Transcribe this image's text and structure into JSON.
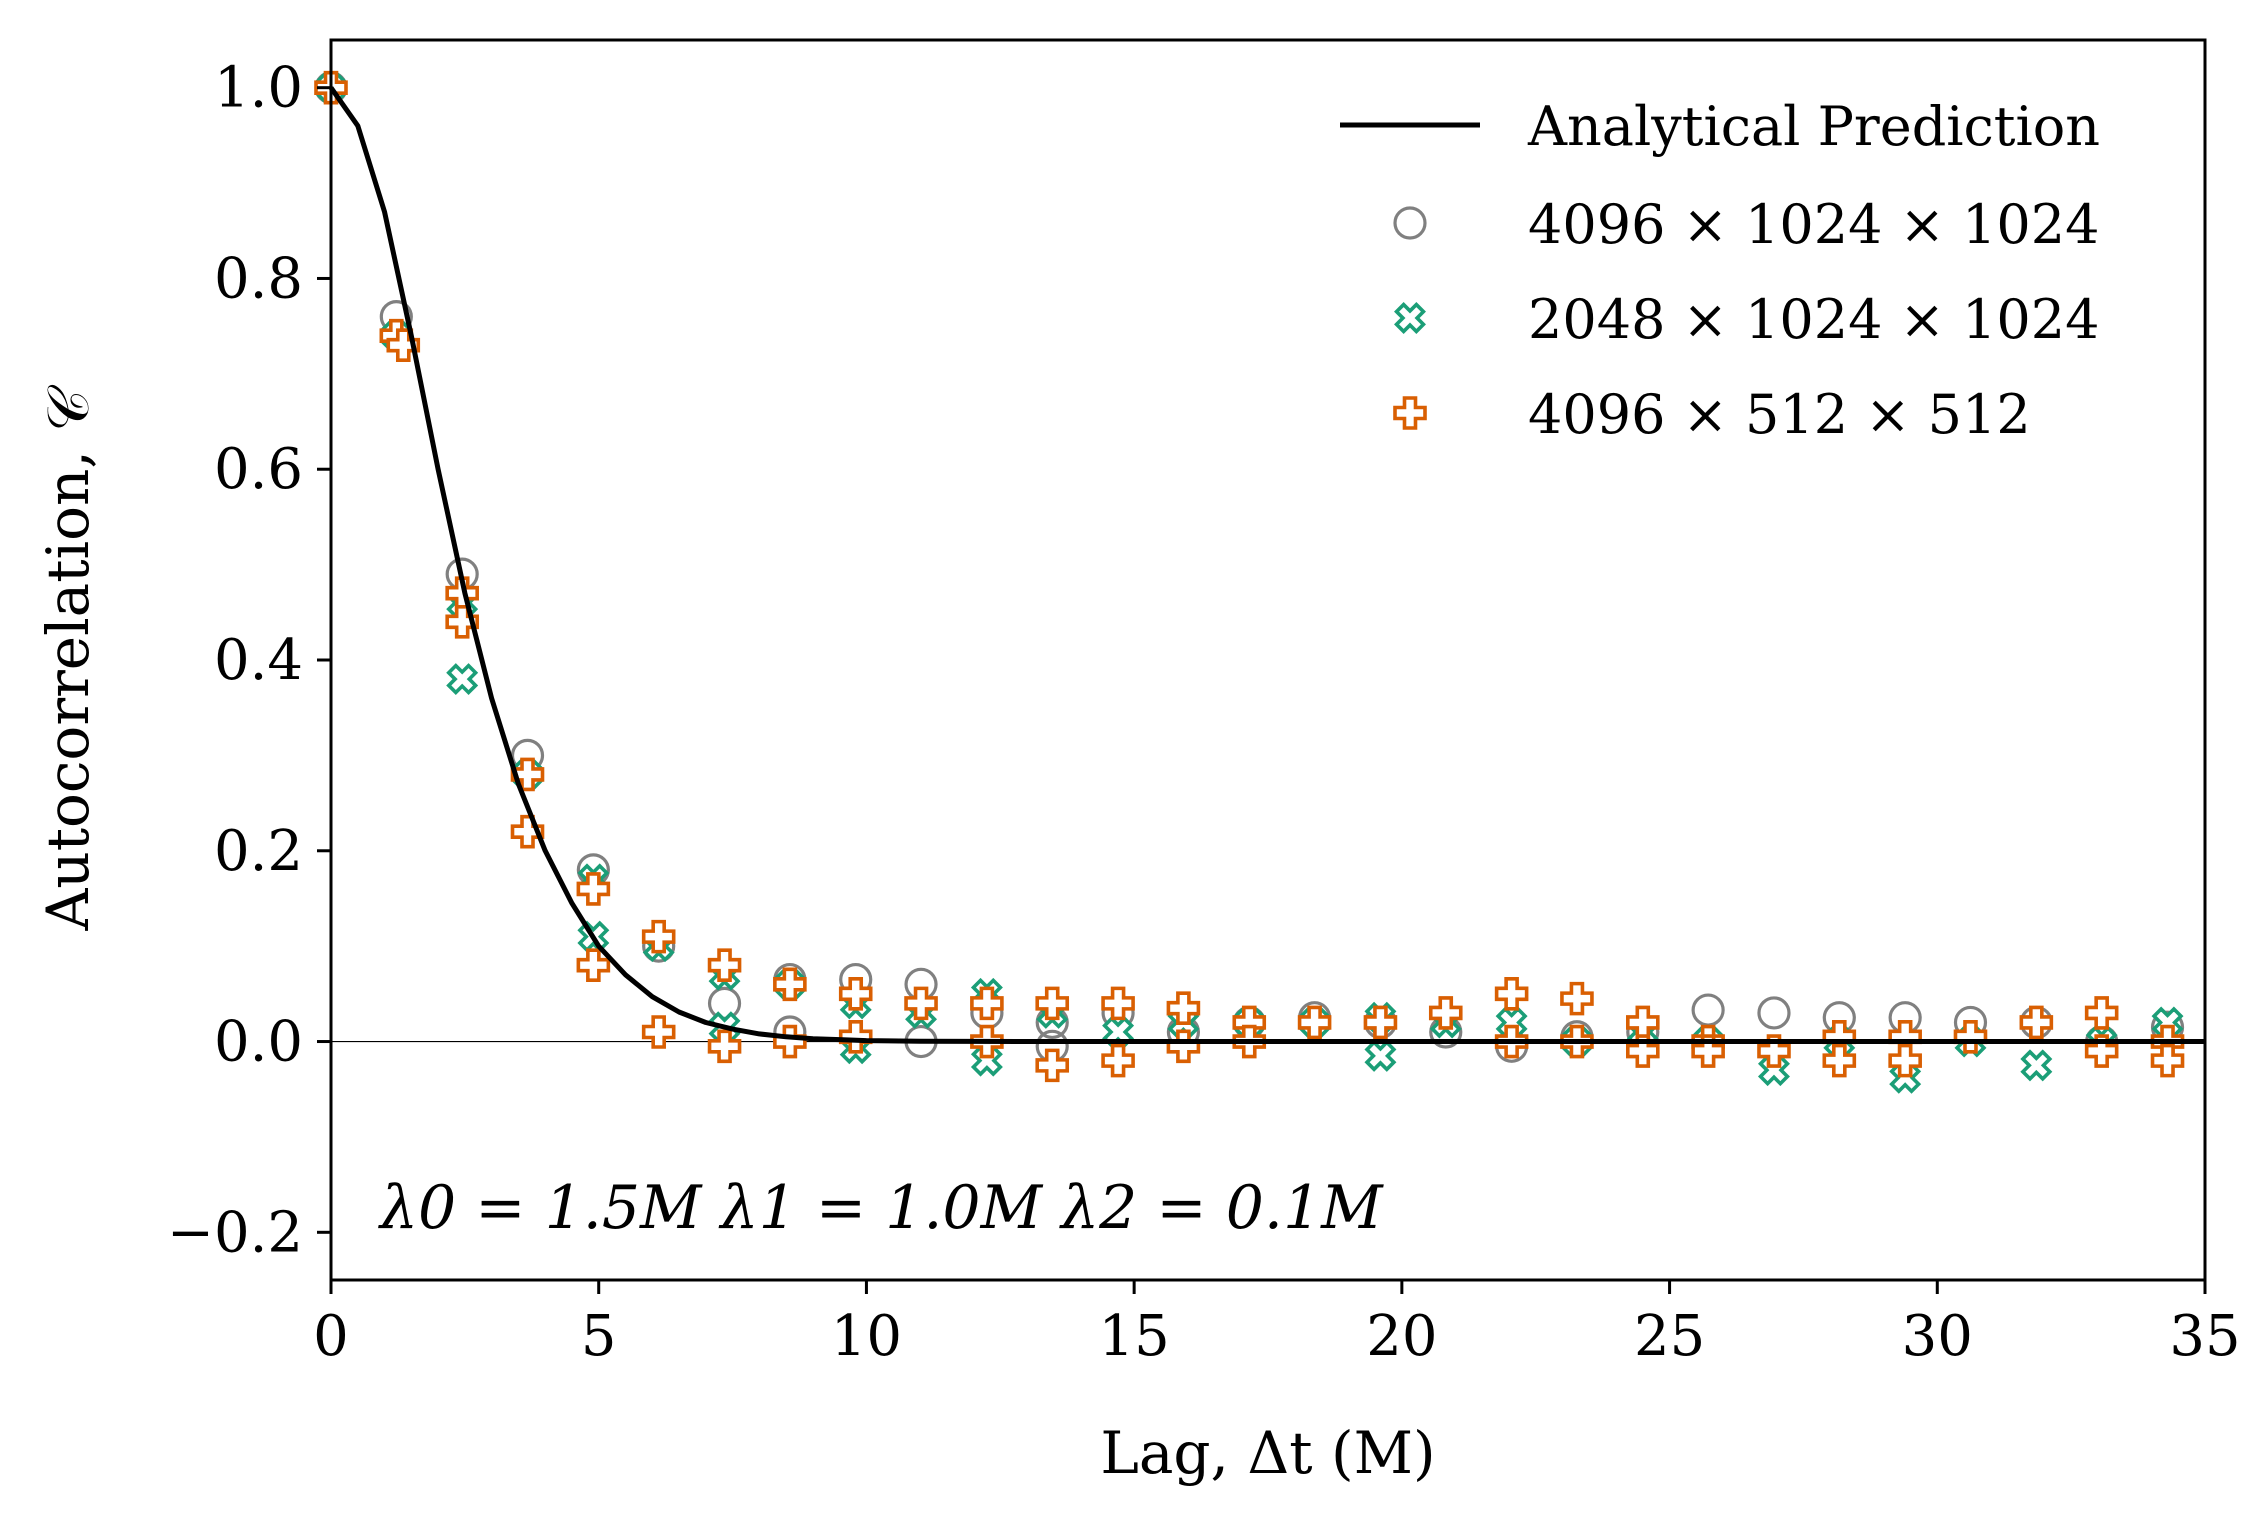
{
  "chart_data": {
    "type": "scatter",
    "title": "",
    "xlabel": "Lag, Δt (M)",
    "ylabel": "Autocorrelation, 𝒞",
    "xlim": [
      0,
      35
    ],
    "ylim": [
      -0.25,
      1.05
    ],
    "xticks": [
      0,
      5,
      10,
      15,
      20,
      25,
      30,
      35
    ],
    "xtick_labels": [
      "0",
      "5",
      "10",
      "15",
      "20",
      "25",
      "30",
      "35"
    ],
    "yticks": [
      -0.2,
      0.0,
      0.2,
      0.4,
      0.6,
      0.8,
      1.0
    ],
    "ytick_labels": [
      "−0.2",
      "0.0",
      "0.2",
      "0.4",
      "0.6",
      "0.8",
      "1.0"
    ],
    "grid": false,
    "zero_line": true,
    "legend_position": "top-right",
    "annotation": "λ0 = 1.5M  λ1 = 1.0M  λ2 = 0.1M",
    "analytical": {
      "name": "Analytical Prediction",
      "color": "#000000",
      "form": "exp(-(dt/lambda0)^2/2)... approx gaussian decay",
      "x": [
        0,
        0.5,
        1,
        1.5,
        2,
        2.5,
        3,
        3.5,
        4,
        4.5,
        5,
        5.5,
        6,
        6.5,
        7,
        7.5,
        8,
        8.5,
        9,
        9.5,
        10,
        11,
        12,
        13,
        14,
        15,
        20,
        25,
        30,
        35
      ],
      "y": [
        1.0,
        0.96,
        0.87,
        0.74,
        0.6,
        0.47,
        0.36,
        0.27,
        0.2,
        0.145,
        0.1,
        0.07,
        0.047,
        0.031,
        0.02,
        0.013,
        0.008,
        0.005,
        0.003,
        0.002,
        0.001,
        0.0004,
        0.0001,
        0.0,
        0.0,
        0.0,
        0.0,
        0.0,
        0.0,
        0.0
      ]
    },
    "series": [
      {
        "name": "4096 × 1024 × 1024",
        "marker": "circle",
        "color": "#808080",
        "points": [
          [
            0,
            1.0
          ],
          [
            1.22,
            0.76
          ],
          [
            2.45,
            0.49
          ],
          [
            3.67,
            0.3
          ],
          [
            4.9,
            0.18
          ],
          [
            6.12,
            0.1
          ],
          [
            7.35,
            0.04
          ],
          [
            8.57,
            0.065
          ],
          [
            8.57,
            0.01
          ],
          [
            9.8,
            0.065
          ],
          [
            11.02,
            0.06
          ],
          [
            11.02,
            0.0
          ],
          [
            12.25,
            0.03
          ],
          [
            13.47,
            0.02
          ],
          [
            13.47,
            -0.005
          ],
          [
            14.7,
            0.03
          ],
          [
            15.92,
            0.01
          ],
          [
            17.15,
            0.02
          ],
          [
            18.37,
            0.025
          ],
          [
            19.6,
            0.02
          ],
          [
            20.82,
            0.01
          ],
          [
            22.05,
            -0.005
          ],
          [
            23.27,
            0.005
          ],
          [
            24.5,
            0.01
          ],
          [
            25.72,
            0.033
          ],
          [
            26.95,
            0.03
          ],
          [
            28.17,
            0.025
          ],
          [
            29.4,
            0.025
          ],
          [
            30.62,
            0.02
          ],
          [
            31.85,
            0.02
          ],
          [
            33.07,
            0.0
          ],
          [
            34.3,
            0.015
          ]
        ]
      },
      {
        "name": "2048 × 1024 × 1024",
        "marker": "x",
        "color": "#1b9e77",
        "points": [
          [
            0,
            1.0
          ],
          [
            1.22,
            0.74
          ],
          [
            2.45,
            0.46
          ],
          [
            2.45,
            0.38
          ],
          [
            3.67,
            0.28
          ],
          [
            4.9,
            0.17
          ],
          [
            4.9,
            0.11
          ],
          [
            6.12,
            0.1
          ],
          [
            7.35,
            0.07
          ],
          [
            7.35,
            0.015
          ],
          [
            8.57,
            0.06
          ],
          [
            9.8,
            0.04
          ],
          [
            9.8,
            -0.007
          ],
          [
            11.02,
            0.03
          ],
          [
            12.25,
            0.05
          ],
          [
            12.25,
            -0.02
          ],
          [
            13.47,
            0.03
          ],
          [
            14.7,
            0.01
          ],
          [
            15.92,
            0.02
          ],
          [
            17.15,
            0.02
          ],
          [
            18.37,
            0.02
          ],
          [
            19.6,
            0.025
          ],
          [
            19.6,
            -0.015
          ],
          [
            20.82,
            0.02
          ],
          [
            22.05,
            0.02
          ],
          [
            23.27,
            0.0
          ],
          [
            24.5,
            0.01
          ],
          [
            25.72,
            0.0
          ],
          [
            26.95,
            -0.03
          ],
          [
            28.17,
            0.0
          ],
          [
            29.4,
            -0.038
          ],
          [
            30.62,
            0.0
          ],
          [
            31.85,
            -0.025
          ],
          [
            33.07,
            0.0
          ],
          [
            34.3,
            0.02
          ]
        ]
      },
      {
        "name": "4096 × 512 × 512",
        "marker": "plus",
        "color": "#d95f02",
        "points": [
          [
            0,
            1.0
          ],
          [
            1.22,
            0.74
          ],
          [
            1.35,
            0.73
          ],
          [
            2.45,
            0.47
          ],
          [
            2.45,
            0.44
          ],
          [
            3.67,
            0.28
          ],
          [
            3.67,
            0.22
          ],
          [
            4.9,
            0.16
          ],
          [
            4.9,
            0.08
          ],
          [
            6.12,
            0.11
          ],
          [
            6.12,
            0.01
          ],
          [
            7.35,
            0.08
          ],
          [
            7.35,
            -0.005
          ],
          [
            8.57,
            0.06
          ],
          [
            8.57,
            0.0
          ],
          [
            9.8,
            0.05
          ],
          [
            9.8,
            0.005
          ],
          [
            11.02,
            0.04
          ],
          [
            12.25,
            0.04
          ],
          [
            12.25,
            0.0
          ],
          [
            13.47,
            0.04
          ],
          [
            13.47,
            -0.025
          ],
          [
            14.7,
            0.04
          ],
          [
            14.7,
            -0.02
          ],
          [
            15.92,
            0.035
          ],
          [
            15.92,
            -0.005
          ],
          [
            17.15,
            0.02
          ],
          [
            17.15,
            0.0
          ],
          [
            18.37,
            0.02
          ],
          [
            19.6,
            0.02
          ],
          [
            20.82,
            0.03
          ],
          [
            22.05,
            0.05
          ],
          [
            22.05,
            0.0
          ],
          [
            23.27,
            0.045
          ],
          [
            23.27,
            0.0
          ],
          [
            24.5,
            0.02
          ],
          [
            24.5,
            -0.01
          ],
          [
            25.72,
            0.0
          ],
          [
            25.72,
            -0.01
          ],
          [
            26.95,
            -0.01
          ],
          [
            28.17,
            0.005
          ],
          [
            28.17,
            -0.02
          ],
          [
            29.4,
            0.005
          ],
          [
            29.4,
            -0.02
          ],
          [
            30.62,
            0.005
          ],
          [
            31.85,
            0.02
          ],
          [
            33.07,
            0.03
          ],
          [
            33.07,
            -0.01
          ],
          [
            34.3,
            0.0
          ],
          [
            34.3,
            -0.02
          ]
        ]
      }
    ]
  }
}
